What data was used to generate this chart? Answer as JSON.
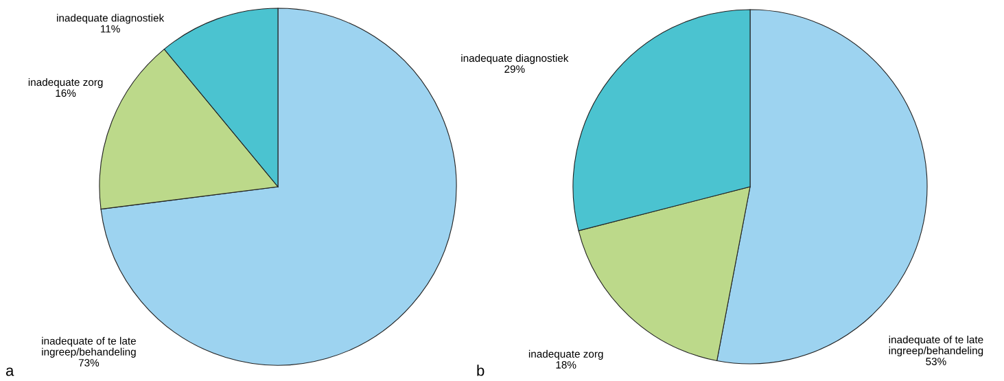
{
  "chart_data": [
    {
      "type": "pie",
      "categories": [
        "inadequate of te late\ningreep/behandeling",
        "inadequate zorg",
        "inadequate diagnostiek"
      ],
      "values": [
        73,
        16,
        11
      ],
      "colors": [
        "#9dd3f0",
        "#bcd98a",
        "#4bc3d0"
      ],
      "value_labels": [
        "73%",
        "16%",
        "11%"
      ],
      "annotations": [
        "a"
      ]
    },
    {
      "type": "pie",
      "categories": [
        "inadequate of te late\ningreep/behandeling",
        "inadequate zorg",
        "inadequate diagnostiek"
      ],
      "values": [
        53,
        18,
        29
      ],
      "colors": [
        "#9dd3f0",
        "#bcd98a",
        "#4bc3d0"
      ],
      "value_labels": [
        "53%",
        "18%",
        "29%"
      ],
      "annotations": [
        "b"
      ]
    }
  ]
}
